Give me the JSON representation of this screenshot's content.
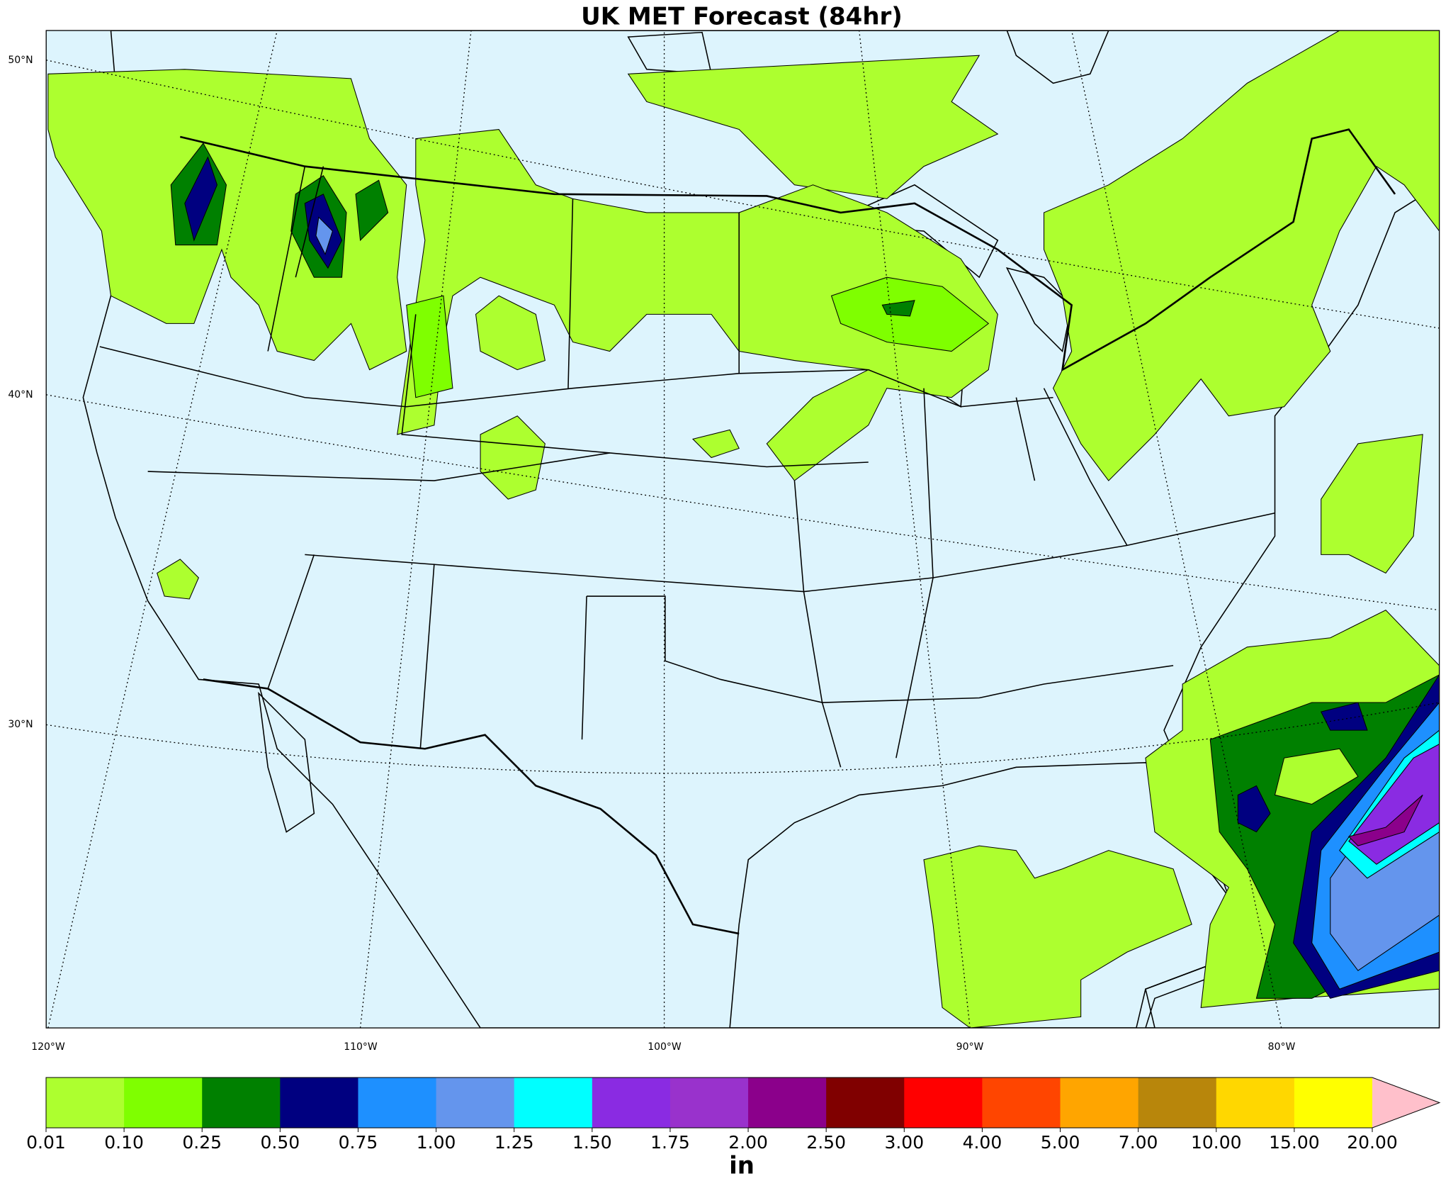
{
  "title": "UK MET Forecast (84hr)",
  "lat_labels": [
    "50°N",
    "40°N",
    "30°N"
  ],
  "lon_labels": [
    "120°W",
    "110°W",
    "100°W",
    "90°W",
    "80°W"
  ],
  "colorbar": {
    "label": "in",
    "ticks": [
      "0.01",
      "0.10",
      "0.25",
      "0.50",
      "0.75",
      "1.00",
      "1.25",
      "1.50",
      "1.75",
      "2.00",
      "2.50",
      "3.00",
      "4.00",
      "5.00",
      "7.00",
      "10.00",
      "15.00",
      "20.00"
    ],
    "colors": [
      "#adff2f",
      "#7fff00",
      "#008000",
      "#000080",
      "#1e90ff",
      "#6495ed",
      "#00ffff",
      "#8a2be2",
      "#9932cc",
      "#8b008b",
      "#800000",
      "#ff0000",
      "#ff4500",
      "#ffa500",
      "#b8860b",
      "#ffd700",
      "#ffff00"
    ],
    "extend_color": "#ffc0cb"
  }
}
